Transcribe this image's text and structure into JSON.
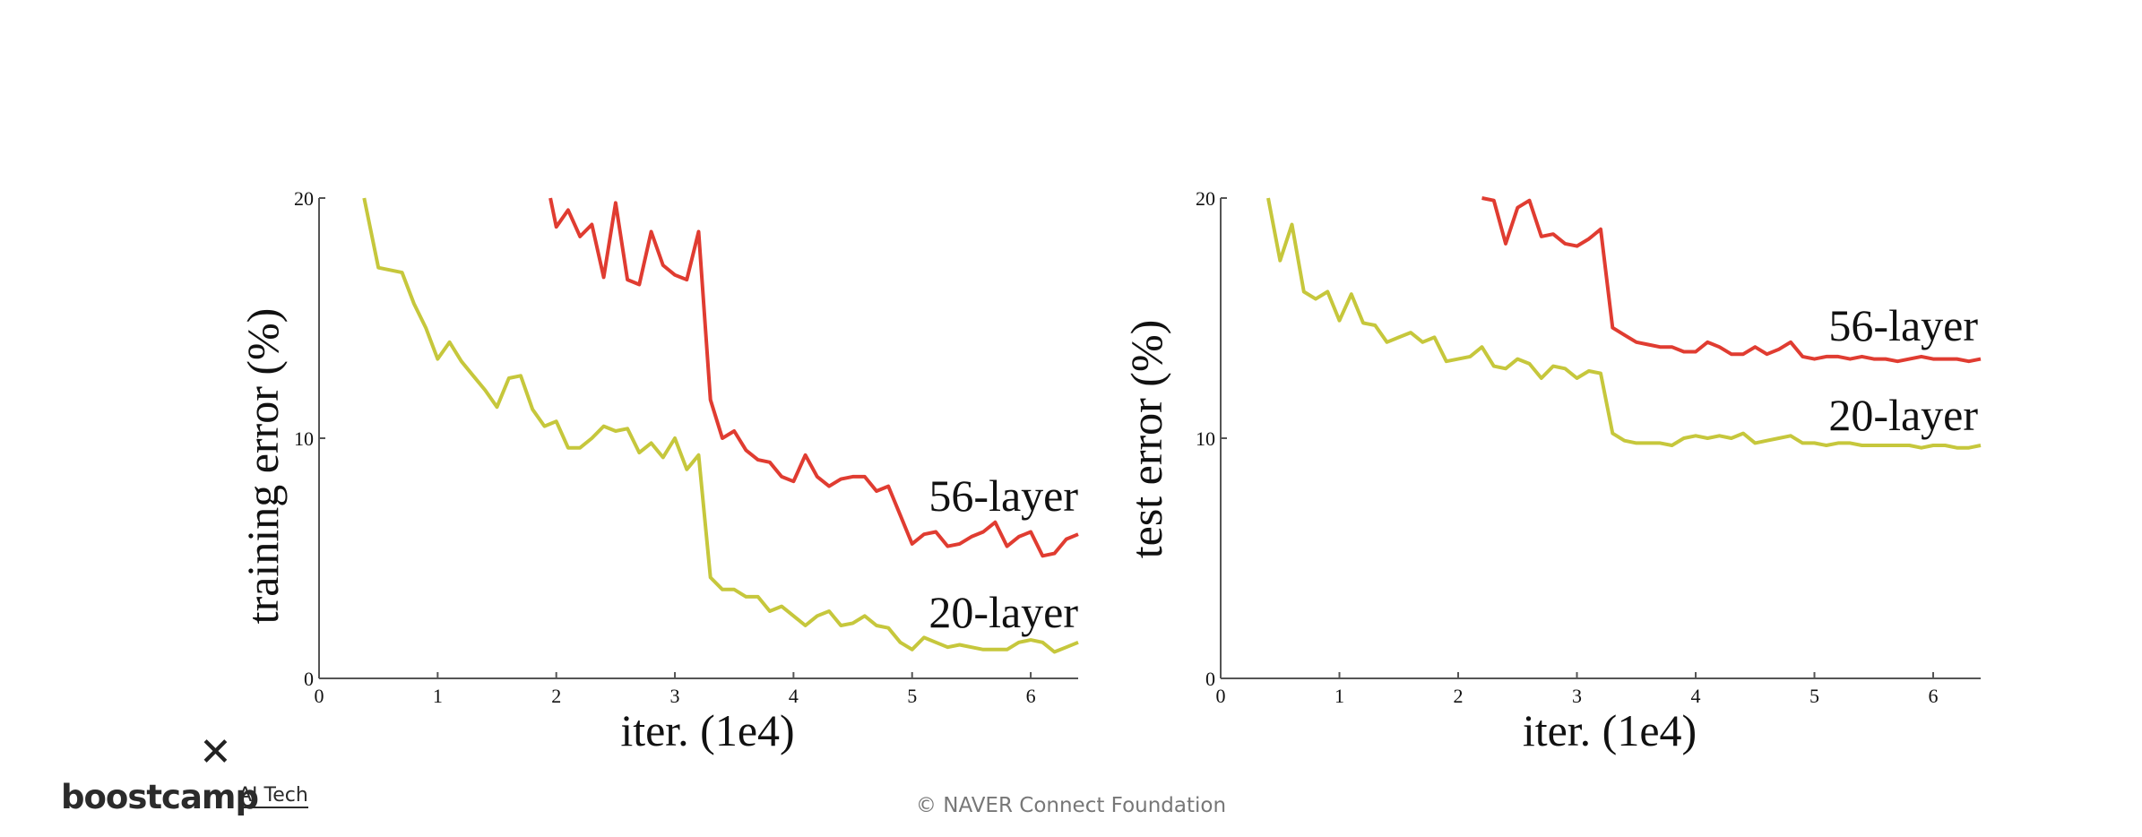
{
  "chart_data": [
    {
      "type": "line",
      "ylabel": "training error (%)",
      "xlabel": "iter. (1e4)",
      "xlim": [
        0,
        6.4
      ],
      "ylim": [
        0,
        20
      ],
      "xticks": [
        "0",
        "1",
        "2",
        "3",
        "4",
        "5",
        "6"
      ],
      "yticks": [
        "0",
        "10",
        "20"
      ],
      "series": [
        {
          "name": "56-layer",
          "color": "#e03c31",
          "x": [
            1.95,
            2.0,
            2.1,
            2.2,
            2.3,
            2.4,
            2.5,
            2.6,
            2.7,
            2.8,
            2.9,
            3.0,
            3.1,
            3.2,
            3.3,
            3.4,
            3.5,
            3.6,
            3.7,
            3.8,
            3.9,
            4.0,
            4.1,
            4.2,
            4.3,
            4.4,
            4.5,
            4.6,
            4.7,
            4.8,
            4.9,
            5.0,
            5.1,
            5.2,
            5.3,
            5.4,
            5.5,
            5.6,
            5.7,
            5.8,
            5.9,
            6.0,
            6.1,
            6.2,
            6.3,
            6.4
          ],
          "y": [
            20.0,
            18.8,
            19.5,
            18.4,
            18.9,
            16.7,
            19.8,
            16.6,
            16.4,
            18.6,
            17.2,
            16.8,
            16.6,
            18.6,
            11.6,
            10.0,
            10.3,
            9.5,
            9.1,
            9.0,
            8.4,
            8.2,
            9.3,
            8.4,
            8.0,
            8.3,
            8.4,
            8.4,
            7.8,
            8.0,
            6.8,
            5.6,
            6.0,
            6.1,
            5.5,
            5.6,
            5.9,
            6.1,
            6.5,
            5.5,
            5.9,
            6.1,
            5.1,
            5.2,
            5.8,
            6.0
          ]
        },
        {
          "name": "20-layer",
          "color": "#c6c73c",
          "x": [
            0.38,
            0.5,
            0.7,
            0.8,
            0.9,
            1.0,
            1.1,
            1.2,
            1.3,
            1.4,
            1.5,
            1.6,
            1.7,
            1.8,
            1.9,
            2.0,
            2.1,
            2.2,
            2.3,
            2.4,
            2.5,
            2.6,
            2.7,
            2.8,
            2.9,
            3.0,
            3.1,
            3.2,
            3.3,
            3.4,
            3.5,
            3.6,
            3.7,
            3.8,
            3.9,
            4.0,
            4.1,
            4.2,
            4.3,
            4.4,
            4.5,
            4.6,
            4.7,
            4.8,
            4.9,
            5.0,
            5.1,
            5.2,
            5.3,
            5.4,
            5.5,
            5.6,
            5.7,
            5.8,
            5.9,
            6.0,
            6.1,
            6.2,
            6.3,
            6.4
          ],
          "y": [
            20.0,
            17.1,
            16.9,
            15.6,
            14.6,
            13.3,
            14.0,
            13.2,
            12.6,
            12.0,
            11.3,
            12.5,
            12.6,
            11.2,
            10.5,
            10.7,
            9.6,
            9.6,
            10.0,
            10.5,
            10.3,
            10.4,
            9.4,
            9.8,
            9.2,
            10.0,
            8.7,
            9.3,
            4.2,
            3.7,
            3.7,
            3.4,
            3.4,
            2.8,
            3.0,
            2.6,
            2.2,
            2.6,
            2.8,
            2.2,
            2.3,
            2.6,
            2.2,
            2.1,
            1.5,
            1.2,
            1.7,
            1.5,
            1.3,
            1.4,
            1.3,
            1.2,
            1.2,
            1.2,
            1.5,
            1.6,
            1.5,
            1.1,
            1.3,
            1.5
          ]
        }
      ]
    },
    {
      "type": "line",
      "ylabel": "test error (%)",
      "xlabel": "iter. (1e4)",
      "xlim": [
        0,
        6.4
      ],
      "ylim": [
        0,
        20
      ],
      "xticks": [
        "0",
        "1",
        "2",
        "3",
        "4",
        "5",
        "6"
      ],
      "yticks": [
        "0",
        "10",
        "20"
      ],
      "series": [
        {
          "name": "56-layer",
          "color": "#e03c31",
          "x": [
            2.2,
            2.3,
            2.4,
            2.5,
            2.6,
            2.7,
            2.8,
            2.9,
            3.0,
            3.1,
            3.2,
            3.3,
            3.4,
            3.5,
            3.6,
            3.7,
            3.8,
            3.9,
            4.0,
            4.1,
            4.2,
            4.3,
            4.4,
            4.5,
            4.6,
            4.7,
            4.8,
            4.9,
            5.0,
            5.1,
            5.2,
            5.3,
            5.4,
            5.5,
            5.6,
            5.7,
            5.8,
            5.9,
            6.0,
            6.1,
            6.2,
            6.3,
            6.4
          ],
          "y": [
            20.0,
            19.9,
            18.1,
            19.6,
            19.9,
            18.4,
            18.5,
            18.1,
            18.0,
            18.3,
            18.7,
            14.6,
            14.3,
            14.0,
            13.9,
            13.8,
            13.8,
            13.6,
            13.6,
            14.0,
            13.8,
            13.5,
            13.5,
            13.8,
            13.5,
            13.7,
            14.0,
            13.4,
            13.3,
            13.4,
            13.4,
            13.3,
            13.4,
            13.3,
            13.3,
            13.2,
            13.3,
            13.4,
            13.3,
            13.3,
            13.3,
            13.2,
            13.3
          ]
        },
        {
          "name": "20-layer",
          "color": "#c6c73c",
          "x": [
            0.4,
            0.5,
            0.6,
            0.7,
            0.8,
            0.9,
            1.0,
            1.1,
            1.2,
            1.3,
            1.4,
            1.5,
            1.6,
            1.7,
            1.8,
            1.9,
            2.0,
            2.1,
            2.2,
            2.3,
            2.4,
            2.5,
            2.6,
            2.7,
            2.8,
            2.9,
            3.0,
            3.1,
            3.2,
            3.3,
            3.4,
            3.5,
            3.6,
            3.7,
            3.8,
            3.9,
            4.0,
            4.1,
            4.2,
            4.3,
            4.4,
            4.5,
            4.6,
            4.7,
            4.8,
            4.9,
            5.0,
            5.1,
            5.2,
            5.3,
            5.4,
            5.5,
            5.6,
            5.7,
            5.8,
            5.9,
            6.0,
            6.1,
            6.2,
            6.3,
            6.4
          ],
          "y": [
            20.0,
            17.4,
            18.9,
            16.1,
            15.8,
            16.1,
            14.9,
            16.0,
            14.8,
            14.7,
            14.0,
            14.2,
            14.4,
            14.0,
            14.2,
            13.2,
            13.3,
            13.4,
            13.8,
            13.0,
            12.9,
            13.3,
            13.1,
            12.5,
            13.0,
            12.9,
            12.5,
            12.8,
            12.7,
            10.2,
            9.9,
            9.8,
            9.8,
            9.8,
            9.7,
            10.0,
            10.1,
            10.0,
            10.1,
            10.0,
            10.2,
            9.8,
            9.9,
            10.0,
            10.1,
            9.8,
            9.8,
            9.7,
            9.8,
            9.8,
            9.7,
            9.7,
            9.7,
            9.7,
            9.7,
            9.6,
            9.7,
            9.7,
            9.6,
            9.6,
            9.7
          ]
        }
      ]
    }
  ],
  "branding": {
    "logo_mark": "✕",
    "logo_text": "boostcamp",
    "logo_subtext": "AI Tech"
  },
  "footer": {
    "text": "© NAVER Connect Foundation"
  }
}
